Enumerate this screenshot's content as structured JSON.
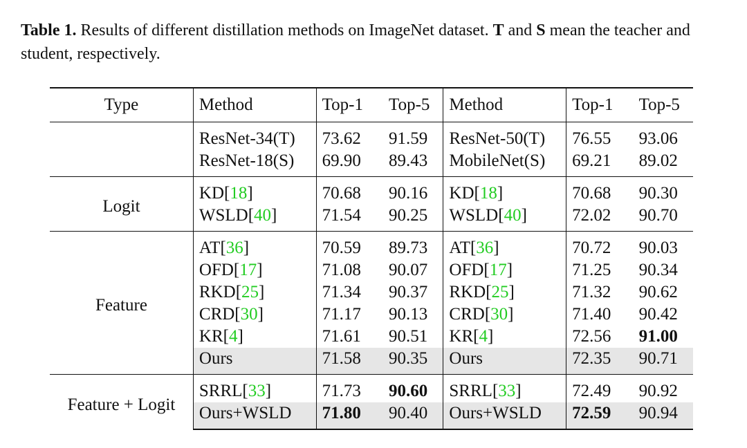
{
  "caption": {
    "label": "Table 1.",
    "text_a": " Results of different distillation methods on ImageNet dataset. ",
    "t": "T",
    "text_b": " and ",
    "s": "S",
    "text_c": " mean the teacher and student, respectively."
  },
  "header": {
    "type": "Type",
    "method1": "Method",
    "top1_a": "Top-1",
    "top5_a": "Top-5",
    "method2": "Method",
    "top1_b": "Top-1",
    "top5_b": "Top-5"
  },
  "baselines": [
    {
      "m1": "ResNet-34(T)",
      "t1a": "73.62",
      "t5a": "91.59",
      "m2": "ResNet-50(T)",
      "t1b": "76.55",
      "t5b": "93.06"
    },
    {
      "m1": "ResNet-18(S)",
      "t1a": "69.90",
      "t5a": "89.43",
      "m2": "MobileNet(S)",
      "t1b": "69.21",
      "t5b": "89.02"
    }
  ],
  "groups": {
    "logit": {
      "label": "Logit",
      "rows": [
        {
          "m1": "KD",
          "r1": "18",
          "t1a": "70.68",
          "t5a": "90.16",
          "m2": "KD",
          "r2": "18",
          "t1b": "70.68",
          "t5b": "90.30"
        },
        {
          "m1": "WSLD",
          "r1": "40",
          "t1a": "71.54",
          "t5a": "90.25",
          "m2": "WSLD",
          "r2": "40",
          "t1b": "72.02",
          "t5b": "90.70"
        }
      ]
    },
    "feature": {
      "label": "Feature",
      "rows": [
        {
          "m1": "AT",
          "r1": "36",
          "t1a": "70.59",
          "t5a": "89.73",
          "m2": "AT",
          "r2": "36",
          "t1b": "70.72",
          "t5b": "90.03"
        },
        {
          "m1": "OFD",
          "r1": "17",
          "t1a": "71.08",
          "t5a": "90.07",
          "m2": "OFD",
          "r2": "17",
          "t1b": "71.25",
          "t5b": "90.34"
        },
        {
          "m1": "RKD",
          "r1": "25",
          "t1a": "71.34",
          "t5a": "90.37",
          "m2": "RKD",
          "r2": "25",
          "t1b": "71.32",
          "t5b": "90.62"
        },
        {
          "m1": "CRD",
          "r1": "30",
          "t1a": "71.17",
          "t5a": "90.13",
          "m2": "CRD",
          "r2": "30",
          "t1b": "71.40",
          "t5b": "90.42"
        },
        {
          "m1": "KR",
          "r1": "4",
          "t1a": "71.61",
          "t5a": "90.51",
          "m2": "KR",
          "r2": "4",
          "t1b": "72.56",
          "t5b": "91.00"
        },
        {
          "m1": "Ours",
          "t1a": "71.58",
          "t5a": "90.35",
          "m2": "Ours",
          "t1b": "72.35",
          "t5b": "90.71"
        }
      ]
    },
    "feature_logit": {
      "label": "Feature + Logit",
      "rows": [
        {
          "m1": "SRRL",
          "r1": "33",
          "t1a": "71.73",
          "t5a": "90.60",
          "m2": "SRRL",
          "r2": "33",
          "t1b": "72.49",
          "t5b": "90.92"
        },
        {
          "m1": "Ours+WSLD",
          "t1a": "71.80",
          "t5a": "90.40",
          "m2": "Ours+WSLD",
          "t1b": "72.59",
          "t5b": "90.94"
        }
      ]
    }
  },
  "colors": {
    "citation": "#22cc22",
    "highlight_row": "#e6e6e6"
  }
}
